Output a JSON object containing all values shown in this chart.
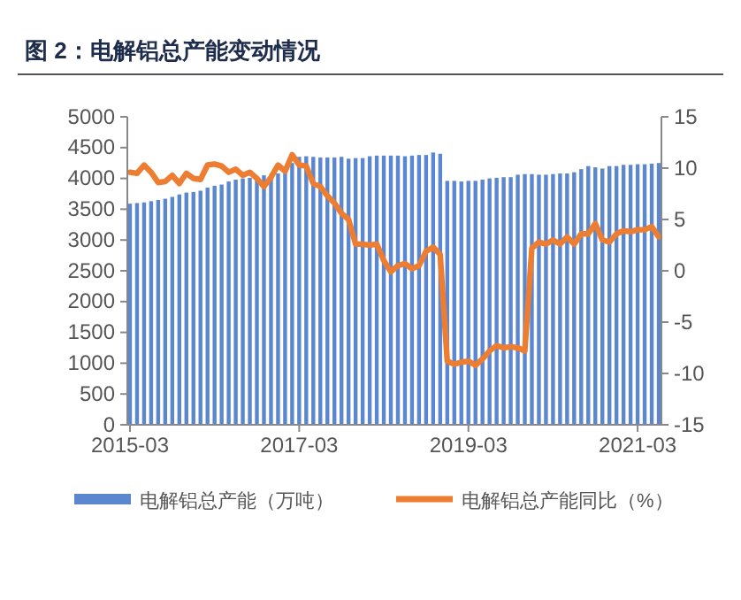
{
  "chart_data": {
    "type": "bar",
    "title": "图 2：电解铝总产能变动情况",
    "categories": [
      "2015-03",
      null,
      null,
      null,
      null,
      null,
      null,
      null,
      null,
      null,
      null,
      null,
      null,
      null,
      null,
      null,
      null,
      null,
      null,
      null,
      null,
      null,
      null,
      null,
      "2017-03",
      null,
      null,
      null,
      null,
      null,
      null,
      null,
      null,
      null,
      null,
      null,
      null,
      null,
      null,
      null,
      null,
      null,
      null,
      null,
      null,
      null,
      null,
      null,
      "2019-03",
      null,
      null,
      null,
      null,
      null,
      null,
      null,
      null,
      null,
      null,
      null,
      null,
      null,
      null,
      null,
      null,
      null,
      null,
      null,
      null,
      null,
      null,
      null,
      "2021-03",
      null,
      null,
      null
    ],
    "series": [
      {
        "name": "电解铝总产能（万吨）",
        "color": "#5b86d0",
        "values": [
          3590,
          3600,
          3610,
          3630,
          3650,
          3670,
          3700,
          3740,
          3770,
          3780,
          3800,
          3850,
          3880,
          3900,
          3950,
          3980,
          4000,
          4010,
          4030,
          4050,
          4060,
          4080,
          4100,
          4250,
          4350,
          4360,
          4350,
          4340,
          4340,
          4340,
          4350,
          4320,
          4330,
          4330,
          4360,
          4370,
          4370,
          4370,
          4370,
          4360,
          4370,
          4380,
          4380,
          4420,
          4400,
          3960,
          3960,
          3950,
          3960,
          3960,
          3980,
          4000,
          4010,
          4020,
          4020,
          4060,
          4070,
          4070,
          4060,
          4060,
          4070,
          4080,
          4080,
          4100,
          4150,
          4200,
          4180,
          4160,
          4200,
          4200,
          4220,
          4220,
          4230,
          4230,
          4240,
          4250
        ]
      },
      {
        "name": "电解铝总产能同比（%）",
        "type": "line",
        "axis": "y2",
        "color": "#ed7d31",
        "values": [
          9.6,
          9.5,
          10.3,
          9.6,
          8.6,
          8.7,
          9.3,
          8.5,
          9.5,
          9.0,
          8.9,
          10.3,
          10.4,
          10.2,
          9.6,
          9.9,
          9.3,
          9.6,
          9.0,
          8.2,
          9.1,
          10.3,
          9.7,
          11.3,
          10.3,
          10.2,
          8.5,
          8.2,
          7.3,
          6.6,
          5.6,
          5.0,
          2.6,
          2.6,
          2.5,
          2.6,
          1.0,
          -0.1,
          0.5,
          0.7,
          0.2,
          0.5,
          1.9,
          2.3,
          1.6,
          -8.8,
          -9.1,
          -8.9,
          -8.8,
          -9.2,
          -8.6,
          -7.8,
          -7.3,
          -7.5,
          -7.4,
          -7.5,
          -7.8,
          2.2,
          2.8,
          2.6,
          3.0,
          2.6,
          3.3,
          2.6,
          3.6,
          3.6,
          4.6,
          3.0,
          2.8,
          3.6,
          3.9,
          3.8,
          4.0,
          4.0,
          4.3,
          3.3
        ]
      }
    ],
    "ylim": [
      0,
      5000
    ],
    "yticks": [
      0,
      500,
      1000,
      1500,
      2000,
      2500,
      3000,
      3500,
      4000,
      4500,
      5000
    ],
    "y2lim": [
      -15,
      15
    ],
    "y2ticks": [
      -15,
      -10,
      -5,
      0,
      5,
      10,
      15
    ],
    "grid": false,
    "legend": "bottom",
    "line_style": "solid",
    "marker": "none"
  }
}
